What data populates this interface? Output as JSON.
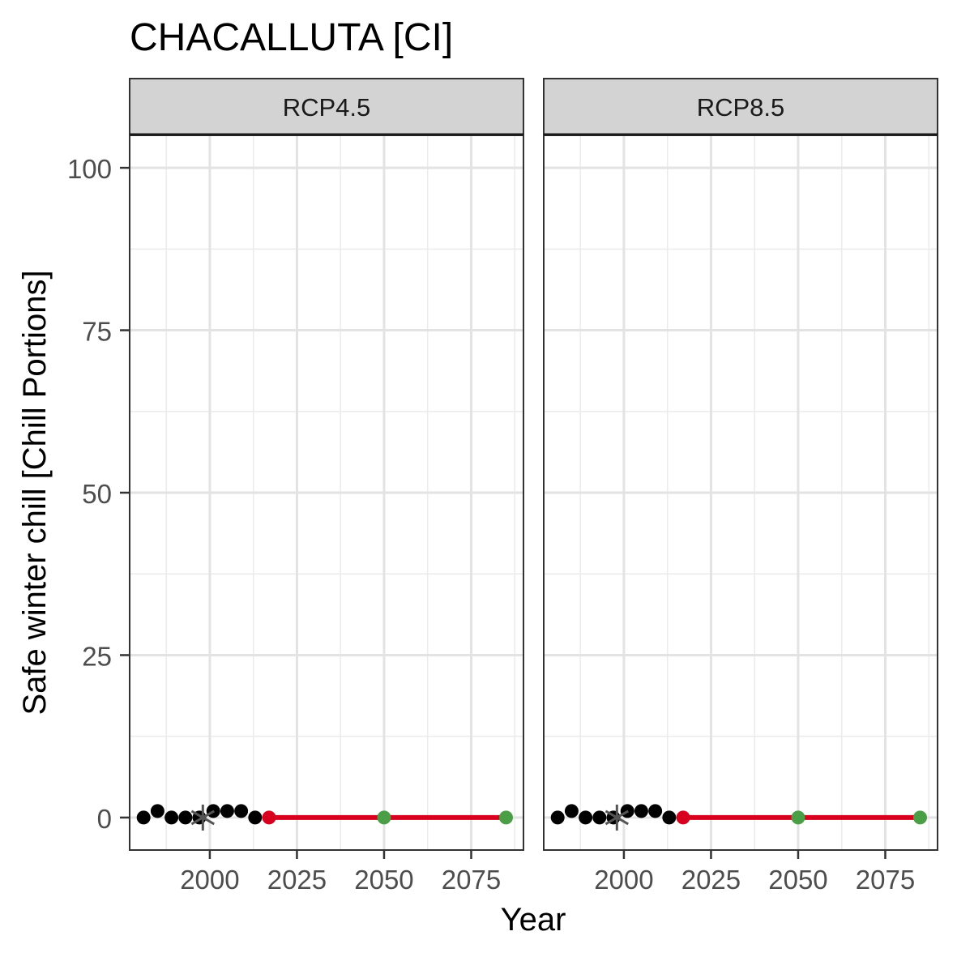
{
  "chart_data": {
    "type": "line",
    "title": "CHACALLUTA [CI]",
    "xlabel": "Year",
    "ylabel": "Safe winter chill [Chill Portions]",
    "xlim": [
      1977,
      2090
    ],
    "ylim": [
      -5,
      105
    ],
    "x_ticks": [
      2000,
      2025,
      2050,
      2075
    ],
    "y_ticks": [
      0,
      25,
      50,
      75,
      100
    ],
    "grid": true,
    "panels": [
      {
        "label": "RCP4.5",
        "historic_points": {
          "x": [
            1981,
            1985,
            1989,
            1993,
            1997,
            2001,
            2005,
            2009,
            2013
          ],
          "y": [
            0,
            1,
            0,
            0,
            0,
            1,
            1,
            1,
            0
          ]
        },
        "baseline_marker": {
          "x": 1998,
          "y": 0
        },
        "scenario_line": {
          "x": [
            2017,
            2050,
            2085
          ],
          "y": [
            0,
            0,
            0
          ],
          "color": "#d7001f"
        },
        "future_points": {
          "x": [
            2050,
            2085
          ],
          "y": [
            0,
            0
          ],
          "color": "#4a9e45"
        }
      },
      {
        "label": "RCP8.5",
        "historic_points": {
          "x": [
            1981,
            1985,
            1989,
            1993,
            1997,
            2001,
            2005,
            2009,
            2013
          ],
          "y": [
            0,
            1,
            0,
            0,
            0,
            1,
            1,
            1,
            0
          ]
        },
        "baseline_marker": {
          "x": 1998,
          "y": 0
        },
        "scenario_line": {
          "x": [
            2017,
            2050,
            2085
          ],
          "y": [
            0,
            0,
            0
          ],
          "color": "#d7001f"
        },
        "future_points": {
          "x": [
            2050,
            2085
          ],
          "y": [
            0,
            0
          ],
          "color": "#4a9e45"
        }
      }
    ]
  }
}
